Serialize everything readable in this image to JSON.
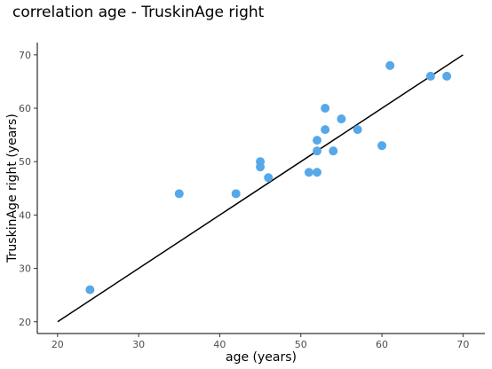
{
  "chart_data": {
    "type": "scatter",
    "title": "correlation age - TruskinAge right",
    "xlabel": "age (years)",
    "ylabel": "TruskinAge right (years)",
    "xlim": [
      17.5,
      72.7
    ],
    "ylim": [
      17.8,
      72.3
    ],
    "x_ticks": [
      20,
      30,
      40,
      50,
      60,
      70
    ],
    "y_ticks": [
      20,
      30,
      40,
      50,
      60,
      70
    ],
    "grid": false,
    "point_color": "#56A8E8",
    "line_color": "#000000",
    "points": [
      {
        "x": 24,
        "y": 26
      },
      {
        "x": 35,
        "y": 44
      },
      {
        "x": 42,
        "y": 44
      },
      {
        "x": 45,
        "y": 50
      },
      {
        "x": 45,
        "y": 49
      },
      {
        "x": 46,
        "y": 47
      },
      {
        "x": 51,
        "y": 48
      },
      {
        "x": 52,
        "y": 48
      },
      {
        "x": 52,
        "y": 54
      },
      {
        "x": 52,
        "y": 52
      },
      {
        "x": 53,
        "y": 60
      },
      {
        "x": 53,
        "y": 56
      },
      {
        "x": 54,
        "y": 52
      },
      {
        "x": 55,
        "y": 58
      },
      {
        "x": 57,
        "y": 56
      },
      {
        "x": 60,
        "y": 53
      },
      {
        "x": 61,
        "y": 68
      },
      {
        "x": 66,
        "y": 66
      },
      {
        "x": 68,
        "y": 66
      }
    ],
    "reference_line": {
      "x": [
        20,
        70
      ],
      "y": [
        20,
        70
      ]
    }
  }
}
